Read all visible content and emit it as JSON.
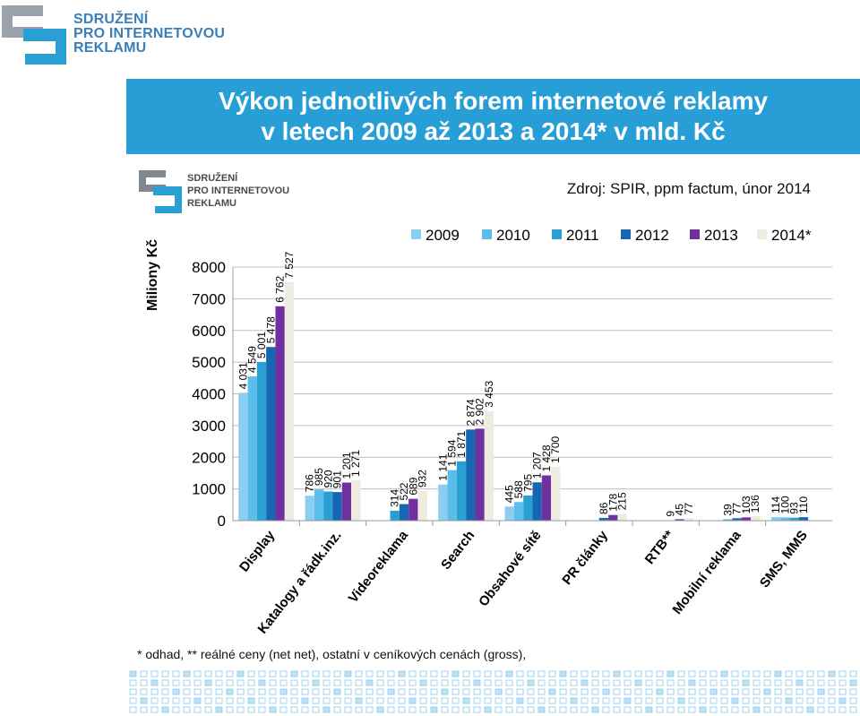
{
  "logo": {
    "line1": "SDRUŽENÍ",
    "line2": "PRO INTERNETOVOU",
    "line3": "REKLAMU"
  },
  "title": {
    "line1": "Výkon jednotlivých forem internetové reklamy",
    "line2": "v letech 2009 až 2013 a 2014* v mld. Kč"
  },
  "source": "Zdroj: SPIR, ppm factum, únor 2014",
  "footnote": "* odhad, ** reálné ceny (net net), ostatní v ceníkových cenách (gross),",
  "colors": {
    "band": "#279fd6",
    "logo": "#3a7fb7",
    "grid": "#bfbfbf"
  },
  "chart_data": {
    "type": "bar",
    "ylabel": "Miliony Kč",
    "ylim": [
      0,
      8000
    ],
    "yticks": [
      0,
      1000,
      2000,
      3000,
      4000,
      5000,
      6000,
      7000,
      8000
    ],
    "legend_position": "top-right",
    "grid": true,
    "categories": [
      "Display",
      "Katalogy a řádk.inz.",
      "Videoreklama",
      "Search",
      "Obsahové sítě",
      "PR články",
      "RTB**",
      "Mobilní reklama",
      "SMS, MMS"
    ],
    "series": [
      {
        "name": "2009",
        "color": "#8ccdf2",
        "values": [
          4031,
          786,
          null,
          1141,
          445,
          null,
          null,
          null,
          114
        ],
        "labels": [
          "4 031",
          "786",
          "",
          "1 141",
          "445",
          "",
          "",
          "",
          "114"
        ]
      },
      {
        "name": "2010",
        "color": "#5bbde9",
        "values": [
          4549,
          985,
          null,
          1594,
          588,
          null,
          null,
          null,
          100
        ],
        "labels": [
          "4 549",
          "985",
          "",
          "1 594",
          "588",
          "",
          "",
          "",
          "100"
        ]
      },
      {
        "name": "2011",
        "color": "#2a9fd4",
        "values": [
          5001,
          920,
          314,
          1871,
          795,
          null,
          null,
          39,
          93
        ],
        "labels": [
          "5 001",
          "920",
          "314",
          "1 871",
          "795",
          "",
          "",
          "39",
          "93"
        ]
      },
      {
        "name": "2012",
        "color": "#1766b1",
        "values": [
          5478,
          901,
          522,
          2874,
          1207,
          86,
          9,
          77,
          110
        ],
        "labels": [
          "5 478",
          "901",
          "522",
          "2 874",
          "1 207",
          "86",
          "9",
          "77",
          "110"
        ]
      },
      {
        "name": "2013",
        "color": "#7030a0",
        "values": [
          6762,
          1201,
          689,
          2902,
          1428,
          178,
          45,
          103,
          null
        ],
        "labels": [
          "6 762",
          "1 201",
          "689",
          "2 902",
          "1 428",
          "178",
          "45",
          "103",
          ""
        ]
      },
      {
        "name": "2014*",
        "color": "#eeece1",
        "values": [
          7527,
          1271,
          932,
          3453,
          1700,
          215,
          77,
          136,
          null
        ],
        "labels": [
          "7 527",
          "1 271",
          "932",
          "3 453",
          "1 700",
          "215",
          "77",
          "136",
          ""
        ]
      }
    ]
  }
}
